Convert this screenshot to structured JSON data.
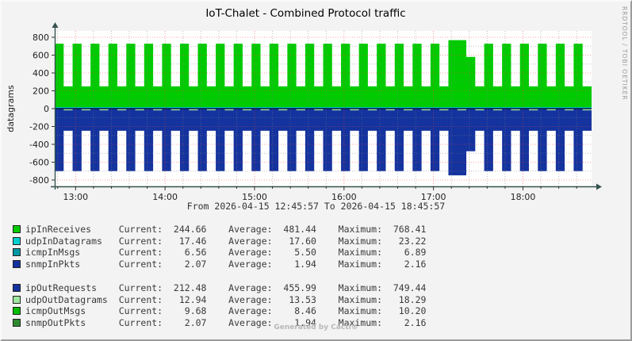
{
  "header": {
    "watermark": "RRDTOOL / TOBI OETIKER"
  },
  "chart_data": {
    "type": "area",
    "title": "IoT-Chalet - Combined Protocol traffic",
    "ylabel": "datagrams",
    "x_range_label": "From 2026-04-15 12:45:57 To 2026-04-15 18:45:57",
    "duration_min": 360,
    "slot_minutes": 6,
    "ylim": [
      -871,
      871
    ],
    "y_ticks": [
      800,
      600,
      400,
      200,
      0,
      -200,
      -400,
      -600,
      -800
    ],
    "y_grid_minor_step": 100,
    "y_grid_major_step": 200,
    "x_grid_minor_step_min": 12,
    "x_ticks": [
      {
        "label": "13:00",
        "min": 14
      },
      {
        "label": "14:00",
        "min": 74
      },
      {
        "label": "15:00",
        "min": 134
      },
      {
        "label": "16:00",
        "min": 194
      },
      {
        "label": "17:00",
        "min": 254
      },
      {
        "label": "18:00",
        "min": 314
      }
    ],
    "grid": {
      "on": true,
      "minor_color": "#828282",
      "major_color": "#fa3c3c",
      "zero_line_color": "#000000"
    },
    "plot_bg": "#ffffff",
    "axis_color": "#35534e",
    "series": [
      {
        "name": "ipInReceives",
        "draw": "area-step",
        "color": "#00CB00",
        "values": [
          728,
          250,
          728,
          250,
          728,
          250,
          728,
          250,
          728,
          250,
          728,
          250,
          728,
          250,
          728,
          250,
          728,
          250,
          728,
          250,
          728,
          250,
          728,
          250,
          728,
          250,
          728,
          250,
          728,
          250,
          728,
          250,
          728,
          250,
          728,
          250,
          728,
          250,
          728,
          250,
          728,
          250,
          728,
          250,
          768,
          768,
          580,
          250,
          728,
          250,
          728,
          250,
          728,
          250,
          728,
          250,
          728,
          250,
          728,
          250
        ]
      },
      {
        "name": "udpInDatagrams",
        "draw": "band-const",
        "color": "#00CFCF",
        "value": 17.5
      },
      {
        "name": "icmpInMsgs",
        "draw": "line-const",
        "color": "#0099A3",
        "value": 6.5
      },
      {
        "name": "snmpInPkts",
        "draw": "line-const",
        "color": "#14339E",
        "value": 2
      },
      {
        "name": "ipOutRequests",
        "draw": "area-step",
        "color": "#14339E",
        "values": [
          -700,
          -248,
          -700,
          -248,
          -700,
          -248,
          -700,
          -248,
          -700,
          -248,
          -700,
          -248,
          -700,
          -248,
          -700,
          -248,
          -700,
          -248,
          -700,
          -248,
          -700,
          -248,
          -700,
          -248,
          -700,
          -248,
          -700,
          -248,
          -700,
          -248,
          -700,
          -248,
          -700,
          -248,
          -700,
          -248,
          -700,
          -248,
          -700,
          -248,
          -700,
          -248,
          -700,
          -248,
          -748,
          -748,
          -478,
          -248,
          -700,
          -248,
          -700,
          -248,
          -700,
          -248,
          -700,
          -248,
          -700,
          -248,
          -700,
          -248
        ]
      },
      {
        "name": "udpOutDatagrams",
        "draw": "dash-band",
        "color": "#9FE69F",
        "value": -13,
        "dash_slots": "odd"
      }
    ]
  },
  "legend": {
    "col_labels": {
      "current": "Current:",
      "average": "Average:",
      "maximum": "Maximum:"
    },
    "blocks": [
      {
        "rows": [
          {
            "name": "ipInReceives",
            "color": "#00CB00",
            "current": "244.66",
            "average": "481.44",
            "maximum": "768.41"
          },
          {
            "name": "udpInDatagrams",
            "color": "#00CFCF",
            "current": "17.46",
            "average": "17.60",
            "maximum": "23.22"
          },
          {
            "name": "icmpInMsgs",
            "color": "#0099A3",
            "current": "6.56",
            "average": "5.50",
            "maximum": "6.89"
          },
          {
            "name": "snmpInPkts",
            "color": "#14339E",
            "current": "2.07",
            "average": "1.94",
            "maximum": "2.16"
          }
        ]
      },
      {
        "rows": [
          {
            "name": "ipOutRequests",
            "color": "#14339E",
            "current": "212.48",
            "average": "455.99",
            "maximum": "749.44"
          },
          {
            "name": "udpOutDatagrams",
            "color": "#9FE69F",
            "current": "12.94",
            "average": "13.53",
            "maximum": "18.29"
          },
          {
            "name": "icmpOutMsgs",
            "color": "#00BE00",
            "current": "9.68",
            "average": "8.46",
            "maximum": "10.20"
          },
          {
            "name": "snmpOutPkts",
            "color": "#2F8A2F",
            "current": "2.07",
            "average": "1.94",
            "maximum": "2.16"
          }
        ]
      }
    ]
  },
  "footer": {
    "generated": "Generated by Cacti®"
  }
}
